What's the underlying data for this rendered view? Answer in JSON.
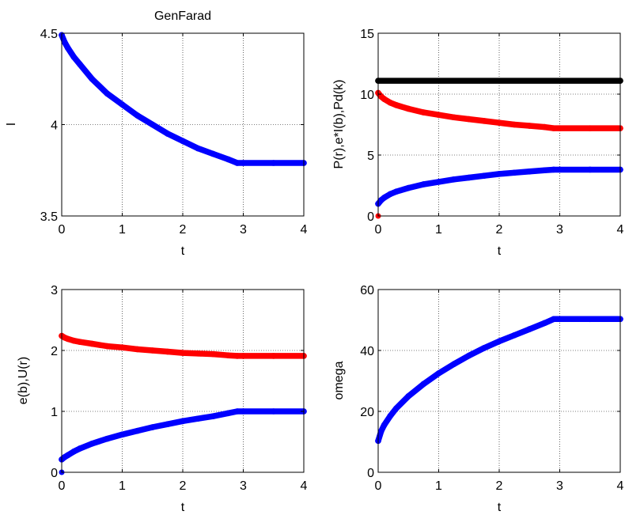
{
  "chart_data": [
    {
      "type": "line",
      "title": "GenFarad",
      "xlabel": "t",
      "ylabel": "I",
      "xlim": [
        0,
        4
      ],
      "ylim": [
        3.5,
        4.5
      ],
      "xticks": [
        "0",
        "1",
        "2",
        "3",
        "4"
      ],
      "yticks": [
        "3.5",
        "4",
        "4.5"
      ],
      "grid": true,
      "legend": "none",
      "series": [
        {
          "color": "#0000ff",
          "x": [
            0,
            0.05,
            0.1,
            0.2,
            0.3,
            0.5,
            0.75,
            1,
            1.25,
            1.5,
            1.75,
            2,
            2.25,
            2.5,
            2.75,
            2.9,
            3.0,
            3.5,
            4.0
          ],
          "y": [
            4.49,
            4.45,
            4.42,
            4.37,
            4.33,
            4.25,
            4.17,
            4.11,
            4.05,
            4.0,
            3.95,
            3.91,
            3.87,
            3.84,
            3.81,
            3.79,
            3.79,
            3.79,
            3.79
          ]
        }
      ]
    },
    {
      "type": "line",
      "title": "",
      "xlabel": "t",
      "ylabel": "P(r),e*I(b),Pd(k)",
      "xlim": [
        0,
        4
      ],
      "ylim": [
        0,
        15
      ],
      "xticks": [
        "0",
        "1",
        "2",
        "3",
        "4"
      ],
      "yticks": [
        "0",
        "5",
        "10",
        "15"
      ],
      "grid": true,
      "legend": "none",
      "series": [
        {
          "color": "#000000",
          "x": [
            0,
            4
          ],
          "y": [
            11.1,
            11.1
          ]
        },
        {
          "color": "#ff0000",
          "x": [
            0,
            0.05,
            0.1,
            0.2,
            0.3,
            0.5,
            0.75,
            1,
            1.25,
            1.5,
            1.75,
            2,
            2.25,
            2.5,
            2.75,
            2.9,
            3.0,
            3.5,
            4.0
          ],
          "y": [
            10.1,
            9.8,
            9.6,
            9.3,
            9.1,
            8.8,
            8.5,
            8.3,
            8.1,
            7.95,
            7.8,
            7.65,
            7.5,
            7.4,
            7.3,
            7.2,
            7.2,
            7.2,
            7.2
          ]
        },
        {
          "color": "#0000ff",
          "x": [
            0,
            0.05,
            0.1,
            0.2,
            0.3,
            0.5,
            0.75,
            1,
            1.25,
            1.5,
            1.75,
            2,
            2.25,
            2.5,
            2.75,
            2.9,
            3.0,
            3.5,
            4.0
          ],
          "y": [
            1.0,
            1.3,
            1.5,
            1.8,
            2.0,
            2.3,
            2.6,
            2.8,
            3.0,
            3.15,
            3.3,
            3.45,
            3.55,
            3.65,
            3.75,
            3.8,
            3.8,
            3.8,
            3.8
          ]
        },
        {
          "color": "#ff0000",
          "x": [
            0
          ],
          "y": [
            0
          ]
        }
      ]
    },
    {
      "type": "line",
      "title": "",
      "xlabel": "t",
      "ylabel": "e(b),U(r)",
      "xlim": [
        0,
        4
      ],
      "ylim": [
        0,
        3
      ],
      "xticks": [
        "0",
        "1",
        "2",
        "3",
        "4"
      ],
      "yticks": [
        "0",
        "1",
        "2",
        "3"
      ],
      "grid": true,
      "legend": "none",
      "series": [
        {
          "color": "#ff0000",
          "x": [
            0,
            0.05,
            0.1,
            0.2,
            0.3,
            0.5,
            0.75,
            1,
            1.25,
            1.5,
            1.75,
            2,
            2.25,
            2.5,
            2.75,
            2.9,
            3.0,
            3.5,
            4.0
          ],
          "y": [
            2.24,
            2.21,
            2.19,
            2.16,
            2.14,
            2.11,
            2.07,
            2.05,
            2.02,
            2.0,
            1.98,
            1.96,
            1.95,
            1.94,
            1.92,
            1.91,
            1.91,
            1.91,
            1.91
          ]
        },
        {
          "color": "#0000ff",
          "x": [
            0,
            0.05,
            0.1,
            0.2,
            0.3,
            0.5,
            0.75,
            1,
            1.25,
            1.5,
            1.75,
            2,
            2.25,
            2.5,
            2.75,
            2.9,
            3.0,
            3.5,
            4.0
          ],
          "y": [
            0.21,
            0.25,
            0.28,
            0.34,
            0.39,
            0.47,
            0.55,
            0.62,
            0.68,
            0.74,
            0.79,
            0.84,
            0.88,
            0.92,
            0.97,
            1.0,
            1.0,
            1.0,
            1.0
          ]
        },
        {
          "color": "#0000ff",
          "x": [
            0
          ],
          "y": [
            0
          ]
        }
      ]
    },
    {
      "type": "line",
      "title": "",
      "xlabel": "t",
      "ylabel": "omega",
      "xlim": [
        0,
        4
      ],
      "ylim": [
        0,
        60
      ],
      "xticks": [
        "0",
        "1",
        "2",
        "3",
        "4"
      ],
      "yticks": [
        "0",
        "20",
        "40",
        "60"
      ],
      "grid": true,
      "legend": "none",
      "series": [
        {
          "color": "#0000ff",
          "x": [
            0,
            0.05,
            0.1,
            0.2,
            0.3,
            0.5,
            0.75,
            1,
            1.25,
            1.5,
            1.75,
            2,
            2.25,
            2.5,
            2.75,
            2.9,
            3.0,
            3.5,
            4.0
          ],
          "y": [
            10.3,
            13.5,
            15.5,
            18.5,
            21,
            25,
            29,
            32.5,
            35.5,
            38.3,
            40.8,
            43,
            45,
            47,
            49,
            50.3,
            50.3,
            50.3,
            50.3
          ]
        }
      ]
    }
  ]
}
